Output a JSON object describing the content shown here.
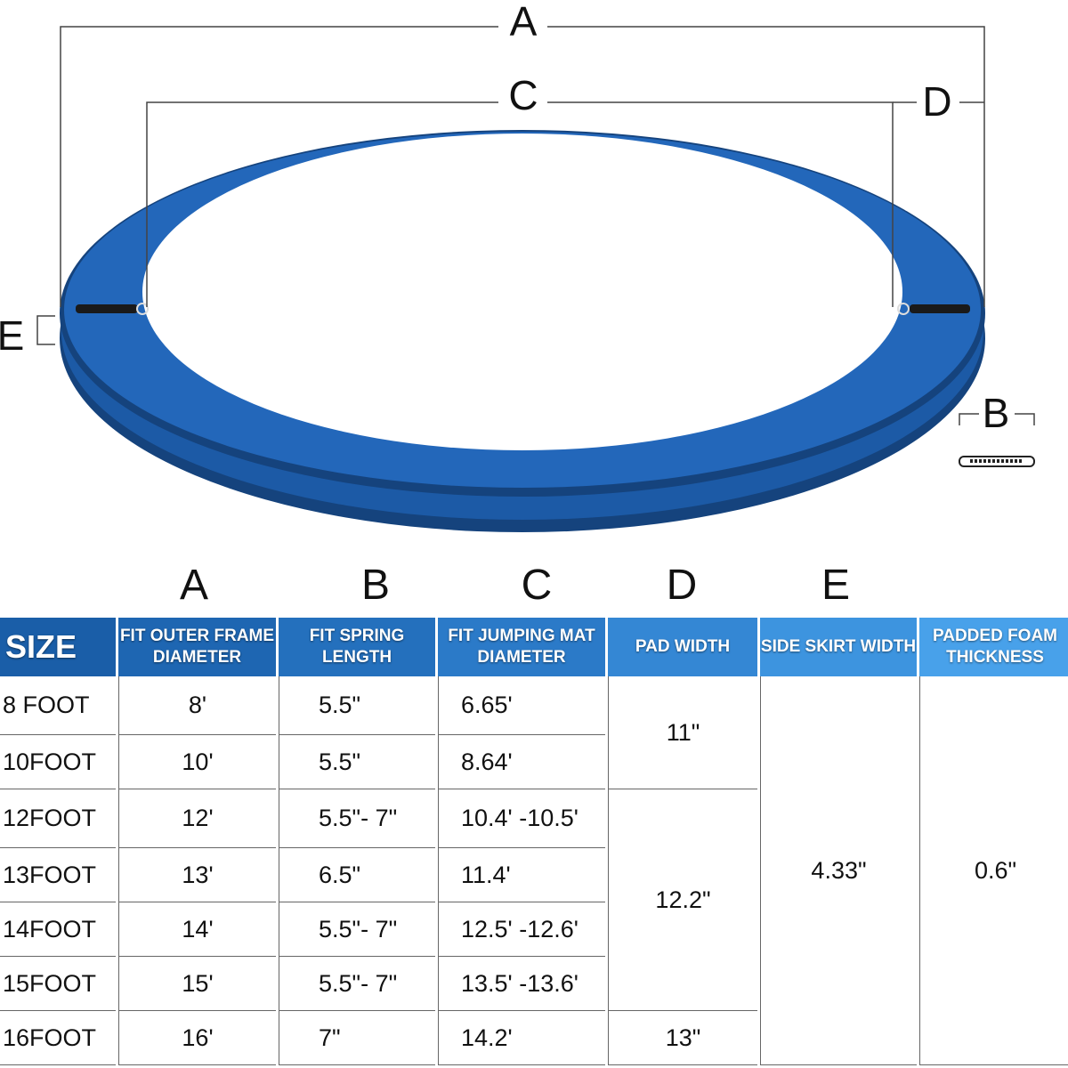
{
  "diagram": {
    "labels": {
      "A": "A",
      "B": "B",
      "C": "C",
      "D": "D",
      "E": "E"
    },
    "colors": {
      "pad": "#1f63b5",
      "pad_dark": "#15437d",
      "header_dark": "#1a5ea8",
      "header_light": "#4aa3ea"
    }
  },
  "table": {
    "column_letters": [
      "A",
      "B",
      "C",
      "D",
      "E"
    ],
    "headers": [
      "SIZE",
      "FIT OUTER FRAME DIAMETER",
      "FIT SPRING LENGTH",
      "FIT JUMPING MAT DIAMETER",
      "PAD WIDTH",
      "SIDE SKIRT WIDTH",
      "PADDED FOAM THICKNESS"
    ],
    "rows": [
      {
        "size": "8 FOOT",
        "frame": "8'",
        "spring": "5.5\"",
        "mat": "6.65'"
      },
      {
        "size": "10FOOT",
        "frame": "10'",
        "spring": "5.5\"",
        "mat": "8.64'"
      },
      {
        "size": "12FOOT",
        "frame": "12'",
        "spring": "5.5\"- 7\"",
        "mat": "10.4' -10.5'"
      },
      {
        "size": "13FOOT",
        "frame": "13'",
        "spring": "6.5\"",
        "mat": "11.4'"
      },
      {
        "size": "14FOOT",
        "frame": "14'",
        "spring": "5.5\"- 7\"",
        "mat": "12.5' -12.6'"
      },
      {
        "size": "15FOOT",
        "frame": "15'",
        "spring": "5.5\"- 7\"",
        "mat": "13.5' -13.6'"
      },
      {
        "size": "16FOOT",
        "frame": "16'",
        "spring": "7\"",
        "mat": "14.2'"
      }
    ],
    "pad_width": [
      "11\"",
      "12.2\"",
      "13\""
    ],
    "side_skirt_width": "4.33\"",
    "foam_thickness": "0.6\""
  }
}
